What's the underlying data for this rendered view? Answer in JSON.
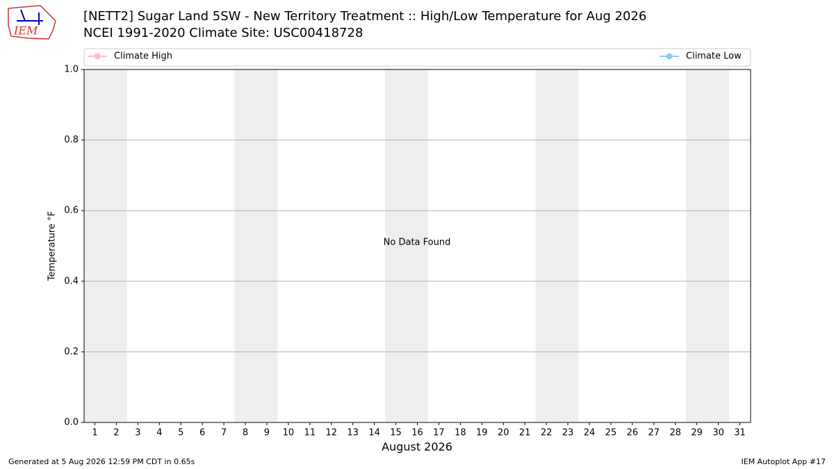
{
  "logo_text": "IEM",
  "chart_data": {
    "type": "line",
    "title": "[NETT2] Sugar Land 5SW - New Territory Treatment :: High/Low Temperature for Aug 2026",
    "subtitle": "NCEI 1991-2020 Climate Site: USC00418728",
    "x_label": "August 2026",
    "y_label": "Temperature °F",
    "annotation": "No Data Found",
    "x": [],
    "series": [
      {
        "name": "Climate High",
        "color": "#ffc0cb",
        "values": []
      },
      {
        "name": "Climate Low",
        "color": "#87ceeb",
        "values": []
      }
    ],
    "xlim": [
      0.5,
      31.5
    ],
    "xticks": [
      1,
      2,
      3,
      4,
      5,
      6,
      7,
      8,
      9,
      10,
      11,
      12,
      13,
      14,
      15,
      16,
      17,
      18,
      19,
      20,
      21,
      22,
      23,
      24,
      25,
      26,
      27,
      28,
      29,
      30,
      31
    ],
    "ylim": [
      0,
      1
    ],
    "yticks": [
      {
        "value": 0,
        "label": "0.0"
      },
      {
        "value": 0.2,
        "label": "0.2"
      },
      {
        "value": 0.4,
        "label": "0.4"
      },
      {
        "value": 0.6,
        "label": "0.6"
      },
      {
        "value": 0.8,
        "label": "0.8"
      },
      {
        "value": 1,
        "label": "1.0"
      }
    ],
    "grid": true,
    "weekend_bands": [
      [
        0.5,
        2.5
      ],
      [
        7.5,
        9.5
      ],
      [
        14.5,
        16.5
      ],
      [
        21.5,
        23.5
      ],
      [
        28.5,
        30.5
      ]
    ],
    "band_color": "#eeeeee"
  },
  "footer": {
    "left": "Generated at 5 Aug 2026 12:59 PM CDT in 0.65s",
    "right": "IEM Autoplot App #17"
  }
}
